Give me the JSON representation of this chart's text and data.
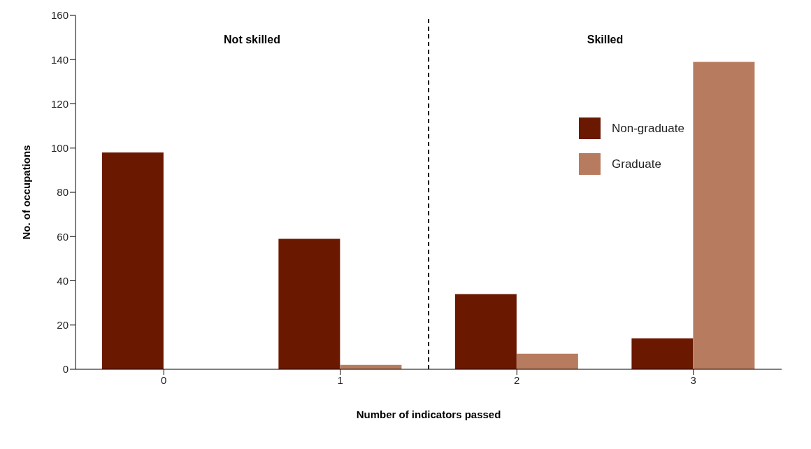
{
  "chart_data": {
    "type": "bar",
    "xlabel": "Number of indicators passed",
    "ylabel": "No. of occupations",
    "x": [
      0,
      1,
      2,
      3
    ],
    "xlim": [
      -0.5,
      3.5
    ],
    "xticks": [
      0,
      1,
      2,
      3
    ],
    "series": [
      {
        "name": "Non-graduate",
        "color": "#6b1800",
        "values": [
          98,
          59,
          34,
          14
        ]
      },
      {
        "name": "Graduate",
        "color": "#b77c5f",
        "values": [
          0,
          2,
          7,
          139
        ]
      }
    ],
    "ylim": [
      0,
      160
    ],
    "yticks": [
      0,
      20,
      40,
      60,
      80,
      100,
      120,
      140,
      160
    ],
    "ref_lines": [
      {
        "axis": "x",
        "value": 1.5,
        "line_style": "dashed",
        "color": "#000000"
      }
    ],
    "annotations": [
      "Not skilled",
      "Skilled"
    ],
    "legend": "top right",
    "grid": false
  }
}
